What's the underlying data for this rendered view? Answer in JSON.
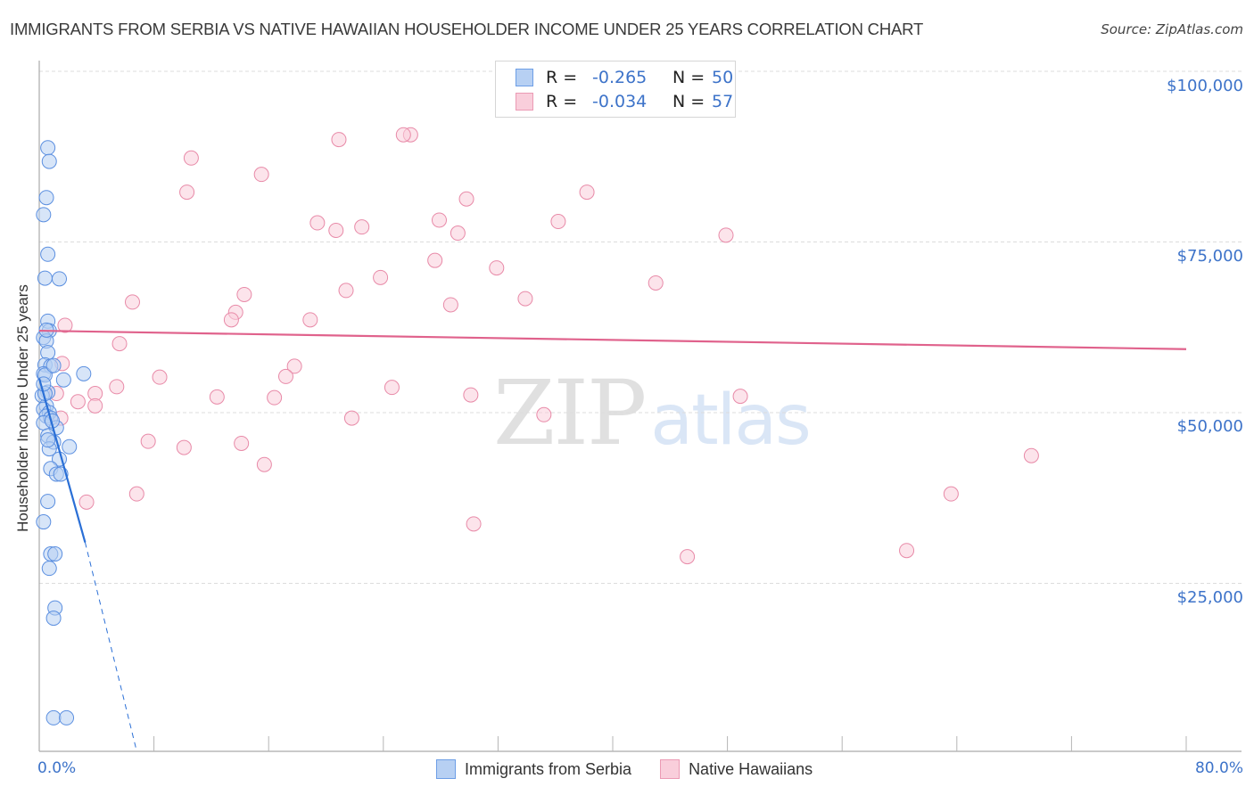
{
  "header": {
    "title": "IMMIGRANTS FROM SERBIA VS NATIVE HAWAIIAN HOUSEHOLDER INCOME UNDER 25 YEARS CORRELATION CHART",
    "source": "Source: ZipAtlas.com"
  },
  "watermark": {
    "zip": "ZIP",
    "atlas": "atlas"
  },
  "legend_box": {
    "rows": [
      {
        "r_label": "R =",
        "r_value": "-0.265",
        "n_label": "N =",
        "n_value": "50"
      },
      {
        "r_label": "R =",
        "r_value": "-0.034",
        "n_label": "N =",
        "n_value": "57"
      }
    ]
  },
  "bottom_legend": [
    {
      "label": "Immigrants from Serbia"
    },
    {
      "label": "Native Hawaiians"
    }
  ],
  "axes": {
    "ylabel": "Householder Income Under 25 years",
    "yticks": [
      "$100,000",
      "$75,000",
      "$50,000",
      "$25,000"
    ],
    "xticks": [
      "0.0%",
      "80.0%"
    ]
  },
  "colors": {
    "blue_fill": "#b7d0f3",
    "blue_stroke": "#5b8fe0",
    "blue_line": "#2a6fd6",
    "pink_fill": "#f9cedb",
    "pink_stroke": "#e88aa8",
    "pink_line": "#e0628c",
    "tick_text": "#3d73c9"
  },
  "chart_data": {
    "type": "scatter",
    "title": "IMMIGRANTS FROM SERBIA VS NATIVE HAWAIIAN HOUSEHOLDER INCOME UNDER 25 YEARS CORRELATION CHART",
    "xlabel": "",
    "ylabel": "Householder Income Under 25 years",
    "xlim": [
      0,
      80
    ],
    "ylim": [
      0,
      104000
    ],
    "x_unit": "%",
    "grid": true,
    "legend_position": "bottom",
    "series": [
      {
        "name": "Immigrants from Serbia",
        "R": -0.265,
        "N": 50,
        "trend": {
          "x0": 0,
          "y0": 55000,
          "x1": 3.2,
          "y1": 31000,
          "dashed_extension_to": [
            6.8,
            0
          ]
        },
        "points": [
          [
            0.6,
            88800
          ],
          [
            0.7,
            86800
          ],
          [
            0.5,
            81500
          ],
          [
            0.3,
            79000
          ],
          [
            0.6,
            73200
          ],
          [
            0.4,
            69700
          ],
          [
            1.4,
            69600
          ],
          [
            0.6,
            63400
          ],
          [
            0.7,
            62000
          ],
          [
            0.3,
            61000
          ],
          [
            0.5,
            60500
          ],
          [
            0.6,
            58800
          ],
          [
            0.4,
            57000
          ],
          [
            0.8,
            56800
          ],
          [
            0.3,
            55700
          ],
          [
            0.4,
            55500
          ],
          [
            3.1,
            55700
          ],
          [
            1.7,
            54800
          ],
          [
            0.6,
            53000
          ],
          [
            0.2,
            52500
          ],
          [
            0.5,
            51000
          ],
          [
            0.3,
            50500
          ],
          [
            0.7,
            50000
          ],
          [
            0.5,
            49500
          ],
          [
            0.8,
            49200
          ],
          [
            0.3,
            48500
          ],
          [
            1.2,
            47800
          ],
          [
            0.6,
            46600
          ],
          [
            1.0,
            45700
          ],
          [
            2.1,
            45000
          ],
          [
            0.7,
            44700
          ],
          [
            1.4,
            43200
          ],
          [
            0.8,
            41800
          ],
          [
            1.2,
            41000
          ],
          [
            1.5,
            41000
          ],
          [
            0.6,
            37000
          ],
          [
            0.3,
            34000
          ],
          [
            0.8,
            29300
          ],
          [
            1.1,
            29300
          ],
          [
            0.7,
            27200
          ],
          [
            1.1,
            21400
          ],
          [
            1.0,
            19900
          ],
          [
            1.0,
            5300
          ],
          [
            1.9,
            5300
          ],
          [
            0.9,
            48800
          ],
          [
            0.4,
            52800
          ],
          [
            0.6,
            46000
          ],
          [
            0.3,
            54200
          ],
          [
            1.0,
            56900
          ],
          [
            0.5,
            62100
          ]
        ]
      },
      {
        "name": "Native Hawaiians",
        "R": -0.034,
        "N": 57,
        "trend": {
          "x0": 0,
          "y0": 62000,
          "x1": 80,
          "y1": 59300
        },
        "points": [
          [
            25.9,
            90700
          ],
          [
            25.4,
            90700
          ],
          [
            20.9,
            90000
          ],
          [
            10.6,
            87300
          ],
          [
            15.5,
            84900
          ],
          [
            10.3,
            82300
          ],
          [
            38.2,
            82300
          ],
          [
            29.8,
            81300
          ],
          [
            19.4,
            77800
          ],
          [
            27.9,
            78200
          ],
          [
            22.5,
            77200
          ],
          [
            20.7,
            76700
          ],
          [
            36.2,
            78000
          ],
          [
            29.2,
            76300
          ],
          [
            47.9,
            76000
          ],
          [
            27.6,
            72300
          ],
          [
            31.9,
            71200
          ],
          [
            23.8,
            69800
          ],
          [
            43.0,
            69000
          ],
          [
            14.3,
            67300
          ],
          [
            21.4,
            67900
          ],
          [
            6.5,
            66200
          ],
          [
            28.7,
            65800
          ],
          [
            33.9,
            66700
          ],
          [
            13.7,
            64700
          ],
          [
            13.4,
            63600
          ],
          [
            18.9,
            63600
          ],
          [
            1.8,
            62800
          ],
          [
            5.6,
            60100
          ],
          [
            1.6,
            57200
          ],
          [
            17.8,
            56800
          ],
          [
            8.4,
            55200
          ],
          [
            17.2,
            55300
          ],
          [
            1.2,
            52800
          ],
          [
            3.9,
            52800
          ],
          [
            5.4,
            53800
          ],
          [
            12.4,
            52300
          ],
          [
            16.4,
            52200
          ],
          [
            24.6,
            53700
          ],
          [
            30.1,
            52600
          ],
          [
            2.7,
            51600
          ],
          [
            3.9,
            51000
          ],
          [
            1.5,
            49200
          ],
          [
            21.8,
            49200
          ],
          [
            35.2,
            49700
          ],
          [
            48.9,
            52400
          ],
          [
            7.6,
            45800
          ],
          [
            10.1,
            44900
          ],
          [
            14.1,
            45500
          ],
          [
            15.7,
            42400
          ],
          [
            69.2,
            43700
          ],
          [
            6.8,
            38100
          ],
          [
            63.6,
            38100
          ],
          [
            3.3,
            36900
          ],
          [
            30.3,
            33700
          ],
          [
            45.2,
            28900
          ],
          [
            60.5,
            29800
          ]
        ]
      }
    ]
  }
}
